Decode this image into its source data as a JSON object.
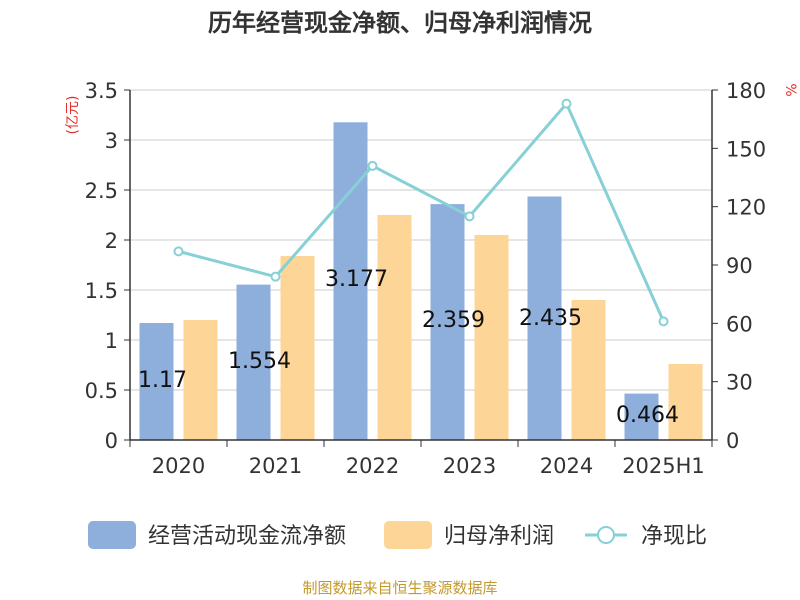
{
  "chart_data": {
    "type": "bar",
    "title": "历年经营现金净额、归母净利润情况",
    "left_unit": "(亿元)",
    "right_unit": "%",
    "categories": [
      "2020",
      "2021",
      "2022",
      "2023",
      "2024",
      "2025H1"
    ],
    "left_axis": {
      "min": 0,
      "max": 3.5,
      "ticks": [
        "0",
        "0.5",
        "1",
        "1.5",
        "2",
        "2.5",
        "3",
        "3.5"
      ]
    },
    "right_axis": {
      "min": 0,
      "max": 180,
      "ticks": [
        "0",
        "30",
        "60",
        "90",
        "120",
        "150",
        "180"
      ]
    },
    "grid": true,
    "legend_position": "bottom",
    "series": [
      {
        "name": "经营活动现金流净额",
        "kind": "bar",
        "axis": "left",
        "color": "#8eaedc",
        "values": [
          1.17,
          1.554,
          3.177,
          2.359,
          2.435,
          0.464
        ],
        "labels": [
          "1.17",
          "1.554",
          "3.177",
          "2.359",
          "2.435",
          "0.464"
        ]
      },
      {
        "name": "归母净利润",
        "kind": "bar",
        "axis": "left",
        "color": "#fdd596",
        "values": [
          1.2,
          1.84,
          2.25,
          2.05,
          1.4,
          0.76
        ]
      },
      {
        "name": "净现比",
        "kind": "line",
        "axis": "right",
        "color": "#86d0d6",
        "values": [
          97,
          84,
          141,
          115,
          173,
          61
        ]
      }
    ],
    "colors": {
      "axis_text": "#333333",
      "unit_text": "#e0302a",
      "source_text": "#c49a2c",
      "grid": "#cccccc"
    }
  },
  "source": "制图数据来自恒生聚源数据库"
}
